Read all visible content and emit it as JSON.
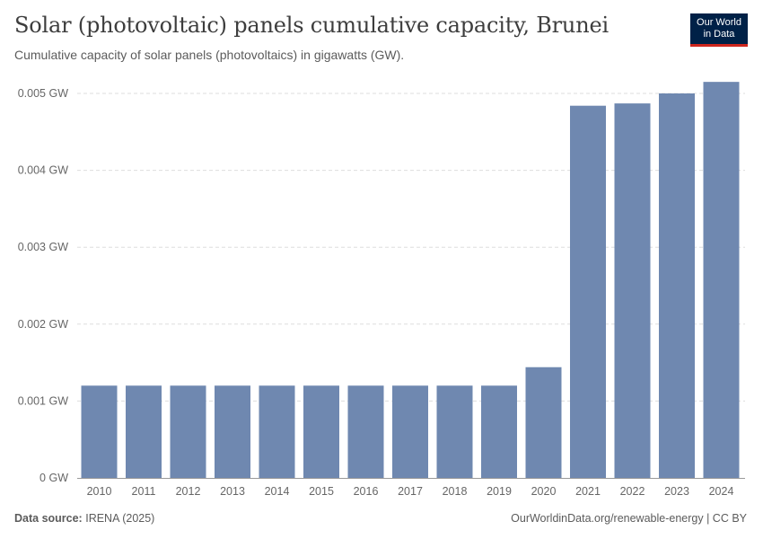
{
  "header": {
    "title": "Solar (photovoltaic) panels cumulative capacity, Brunei",
    "subtitle": "Cumulative capacity of solar panels (photovoltaics) in gigawatts (GW).",
    "logo_line1": "Our World",
    "logo_line2": "in Data"
  },
  "footer": {
    "source_label": "Data source:",
    "source_value": "IRENA (2025)",
    "right_text": "OurWorldinData.org/renewable-energy | CC BY"
  },
  "colors": {
    "bar": "#6f88b0",
    "grid": "#dddddd",
    "axis_text": "#666666",
    "title": "#3d3d3d"
  },
  "chart_data": {
    "type": "bar",
    "title": "Solar (photovoltaic) panels cumulative capacity, Brunei",
    "xlabel": "",
    "ylabel": "",
    "unit": "GW",
    "categories": [
      "2010",
      "2011",
      "2012",
      "2013",
      "2014",
      "2015",
      "2016",
      "2017",
      "2018",
      "2019",
      "2020",
      "2021",
      "2022",
      "2023",
      "2024"
    ],
    "values": [
      0.0012,
      0.0012,
      0.0012,
      0.0012,
      0.0012,
      0.0012,
      0.0012,
      0.0012,
      0.0012,
      0.0012,
      0.00144,
      0.00484,
      0.00487,
      0.005,
      0.00515
    ],
    "ylim": [
      0,
      0.005
    ],
    "yticks": [
      {
        "value": 0,
        "label": "0 GW"
      },
      {
        "value": 0.001,
        "label": "0.001 GW"
      },
      {
        "value": 0.002,
        "label": "0.002 GW"
      },
      {
        "value": 0.003,
        "label": "0.003 GW"
      },
      {
        "value": 0.004,
        "label": "0.004 GW"
      },
      {
        "value": 0.005,
        "label": "0.005 GW"
      }
    ],
    "grid": true
  }
}
